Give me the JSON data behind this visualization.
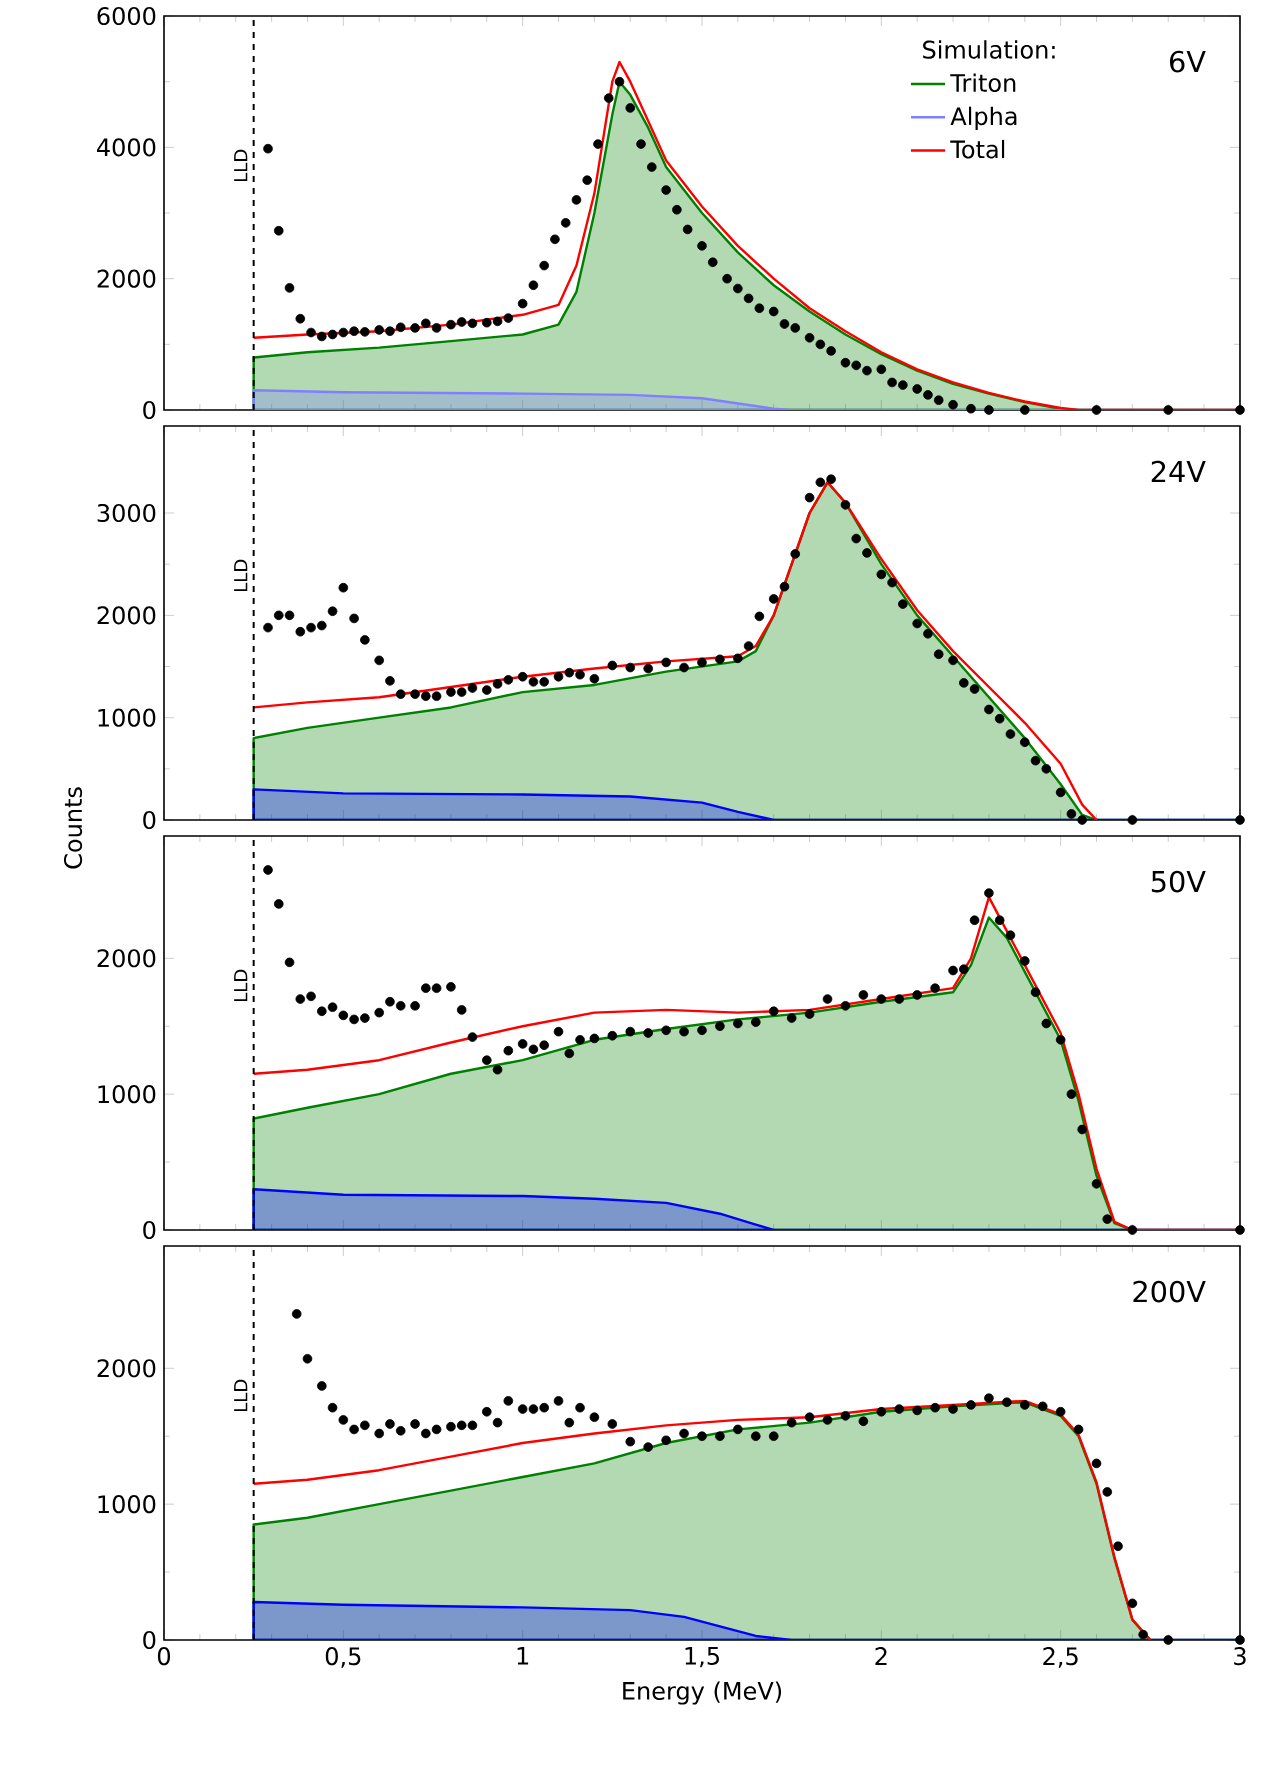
{
  "chart_data": [
    {
      "type": "line",
      "xlim": [
        0,
        3
      ],
      "ylim": [
        0,
        6000
      ],
      "yticks": [
        0,
        2000,
        4000,
        6000
      ],
      "xticks": [
        {
          "value": 0,
          "label": null
        },
        {
          "value": 0.5,
          "label": null
        },
        {
          "value": 1,
          "label": null
        },
        {
          "value": 1.5,
          "label": null
        },
        {
          "value": 2,
          "label": null
        },
        {
          "value": 2.5,
          "label": null
        },
        {
          "value": 3,
          "label": null
        }
      ],
      "tick_labels": "y",
      "legend": "top right",
      "legend_title": "Simulation:",
      "annotations": [
        "6V"
      ],
      "ref_lines": [
        {
          "axis": "x",
          "value": 0.25,
          "label": "LLD",
          "line_style": "dashed",
          "color": "#000000"
        }
      ],
      "series": [
        {
          "name": "Triton",
          "type": "area",
          "color": "#008000",
          "x": [
            0.25,
            0.4,
            0.6,
            0.8,
            1.0,
            1.1,
            1.15,
            1.2,
            1.25,
            1.27,
            1.3,
            1.35,
            1.4,
            1.5,
            1.6,
            1.7,
            1.8,
            1.9,
            2.0,
            2.1,
            2.2,
            2.3,
            2.4,
            2.5,
            2.55,
            3.0
          ],
          "values": [
            800,
            880,
            950,
            1050,
            1150,
            1300,
            1800,
            3000,
            4500,
            5000,
            4800,
            4300,
            3700,
            3000,
            2400,
            1900,
            1500,
            1150,
            850,
            600,
            400,
            250,
            120,
            20,
            0,
            0
          ]
        },
        {
          "name": "Alpha",
          "type": "area",
          "color": "#8080ff",
          "x": [
            0.25,
            0.5,
            1.0,
            1.3,
            1.5,
            1.6,
            1.7,
            1.75,
            3.0
          ],
          "values": [
            300,
            270,
            250,
            230,
            180,
            100,
            20,
            0,
            0
          ]
        },
        {
          "name": "Total",
          "color": "#ff0000",
          "x": [
            0.25,
            0.4,
            0.6,
            0.8,
            1.0,
            1.1,
            1.15,
            1.2,
            1.25,
            1.27,
            1.3,
            1.35,
            1.4,
            1.5,
            1.6,
            1.7,
            1.8,
            1.9,
            2.0,
            2.1,
            2.2,
            2.3,
            2.4,
            2.5,
            2.55,
            3.0
          ],
          "values": [
            1100,
            1150,
            1200,
            1300,
            1450,
            1600,
            2200,
            3300,
            5000,
            5300,
            5000,
            4400,
            3800,
            3100,
            2500,
            2000,
            1550,
            1200,
            880,
            620,
            420,
            260,
            130,
            30,
            0,
            0
          ]
        },
        {
          "type": "scatter",
          "marker": "circle",
          "color": "#000000",
          "x": [
            0.29,
            0.32,
            0.35,
            0.38,
            0.41,
            0.44,
            0.47,
            0.5,
            0.53,
            0.56,
            0.6,
            0.63,
            0.66,
            0.7,
            0.73,
            0.76,
            0.8,
            0.83,
            0.86,
            0.9,
            0.93,
            0.96,
            1.0,
            1.03,
            1.06,
            1.09,
            1.12,
            1.15,
            1.18,
            1.21,
            1.24,
            1.27,
            1.3,
            1.33,
            1.36,
            1.4,
            1.43,
            1.46,
            1.5,
            1.53,
            1.57,
            1.6,
            1.63,
            1.66,
            1.7,
            1.73,
            1.76,
            1.8,
            1.83,
            1.86,
            1.9,
            1.93,
            1.96,
            2.0,
            2.03,
            2.06,
            2.1,
            2.13,
            2.16,
            2.2,
            2.25,
            2.3,
            2.4,
            2.6,
            2.8,
            3.0
          ],
          "values": [
            3980,
            2730,
            1860,
            1390,
            1180,
            1120,
            1150,
            1180,
            1200,
            1190,
            1220,
            1200,
            1260,
            1250,
            1320,
            1250,
            1300,
            1340,
            1320,
            1330,
            1350,
            1400,
            1620,
            1900,
            2200,
            2600,
            2850,
            3200,
            3500,
            4050,
            4750,
            5000,
            4600,
            4050,
            3700,
            3350,
            3050,
            2750,
            2500,
            2250,
            2000,
            1850,
            1700,
            1550,
            1500,
            1310,
            1250,
            1100,
            1000,
            900,
            720,
            680,
            600,
            620,
            420,
            380,
            320,
            230,
            150,
            80,
            20,
            0,
            0,
            0,
            0,
            0
          ]
        }
      ]
    },
    {
      "type": "line",
      "xlim": [
        0,
        3
      ],
      "ylim": [
        0,
        3850
      ],
      "yticks": [
        0,
        1000,
        2000,
        3000
      ],
      "xticks": [
        {
          "value": 0,
          "label": null
        },
        {
          "value": 0.5,
          "label": null
        },
        {
          "value": 1,
          "label": null
        },
        {
          "value": 1.5,
          "label": null
        },
        {
          "value": 2,
          "label": null
        },
        {
          "value": 2.5,
          "label": null
        },
        {
          "value": 3,
          "label": null
        }
      ],
      "tick_labels": "y",
      "ylabel": "Counts",
      "annotations": [
        "24V"
      ],
      "ref_lines": [
        {
          "axis": "x",
          "value": 0.25,
          "label": "LLD",
          "line_style": "dashed",
          "color": "#000000"
        }
      ],
      "series": [
        {
          "type": "area",
          "color": "#008000",
          "x": [
            0.25,
            0.4,
            0.6,
            0.8,
            1.0,
            1.2,
            1.4,
            1.6,
            1.65,
            1.7,
            1.75,
            1.8,
            1.85,
            1.9,
            2.0,
            2.1,
            2.2,
            2.3,
            2.4,
            2.5,
            2.56,
            2.6,
            3.0
          ],
          "values": [
            800,
            900,
            1000,
            1100,
            1250,
            1320,
            1450,
            1550,
            1650,
            2000,
            2500,
            3000,
            3300,
            3100,
            2500,
            2000,
            1600,
            1200,
            800,
            350,
            50,
            0,
            0
          ]
        },
        {
          "type": "area",
          "color": "#0000ff",
          "x": [
            0.25,
            0.5,
            1.0,
            1.3,
            1.5,
            1.6,
            1.7,
            3.0
          ],
          "values": [
            300,
            260,
            250,
            230,
            170,
            80,
            0,
            0
          ]
        },
        {
          "color": "#ff0000",
          "x": [
            0.25,
            0.4,
            0.6,
            0.8,
            1.0,
            1.2,
            1.4,
            1.6,
            1.65,
            1.7,
            1.75,
            1.8,
            1.85,
            1.9,
            2.0,
            2.1,
            2.2,
            2.3,
            2.4,
            2.5,
            2.56,
            2.6
          ],
          "values": [
            1100,
            1150,
            1200,
            1300,
            1400,
            1480,
            1550,
            1600,
            1700,
            2000,
            2500,
            3000,
            3300,
            3100,
            2550,
            2050,
            1650,
            1300,
            950,
            550,
            150,
            0
          ]
        },
        {
          "type": "scatter",
          "marker": "circle",
          "color": "#000000",
          "x": [
            0.29,
            0.32,
            0.35,
            0.38,
            0.41,
            0.44,
            0.47,
            0.5,
            0.53,
            0.56,
            0.6,
            0.63,
            0.66,
            0.7,
            0.73,
            0.76,
            0.8,
            0.83,
            0.86,
            0.9,
            0.93,
            0.96,
            1.0,
            1.03,
            1.06,
            1.1,
            1.13,
            1.16,
            1.2,
            1.25,
            1.3,
            1.35,
            1.4,
            1.45,
            1.5,
            1.55,
            1.6,
            1.63,
            1.66,
            1.7,
            1.73,
            1.76,
            1.8,
            1.83,
            1.86,
            1.9,
            1.93,
            1.96,
            2.0,
            2.03,
            2.06,
            2.1,
            2.13,
            2.16,
            2.2,
            2.23,
            2.26,
            2.3,
            2.33,
            2.36,
            2.4,
            2.43,
            2.46,
            2.5,
            2.53,
            2.56,
            2.7,
            3.0
          ],
          "values": [
            1880,
            2000,
            2000,
            1840,
            1880,
            1900,
            2040,
            2270,
            1970,
            1760,
            1560,
            1360,
            1230,
            1230,
            1210,
            1210,
            1250,
            1250,
            1290,
            1270,
            1330,
            1370,
            1400,
            1350,
            1350,
            1400,
            1440,
            1420,
            1380,
            1510,
            1490,
            1480,
            1540,
            1490,
            1540,
            1570,
            1580,
            1700,
            1990,
            2160,
            2280,
            2600,
            3150,
            3300,
            3330,
            3080,
            2750,
            2610,
            2400,
            2320,
            2110,
            1920,
            1820,
            1620,
            1560,
            1340,
            1280,
            1080,
            990,
            840,
            760,
            580,
            500,
            270,
            60,
            0,
            0,
            0
          ]
        }
      ]
    },
    {
      "type": "line",
      "xlim": [
        0,
        3
      ],
      "ylim": [
        0,
        2900
      ],
      "yticks": [
        0,
        1000,
        2000
      ],
      "xticks": [
        {
          "value": 0,
          "label": null
        },
        {
          "value": 0.5,
          "label": null
        },
        {
          "value": 1,
          "label": null
        },
        {
          "value": 1.5,
          "label": null
        },
        {
          "value": 2,
          "label": null
        },
        {
          "value": 2.5,
          "label": null
        },
        {
          "value": 3,
          "label": null
        }
      ],
      "tick_labels": "y",
      "annotations": [
        "50V"
      ],
      "ref_lines": [
        {
          "axis": "x",
          "value": 0.25,
          "label": "LLD",
          "line_style": "dashed",
          "color": "#000000"
        }
      ],
      "series": [
        {
          "type": "area",
          "color": "#008000",
          "x": [
            0.25,
            0.4,
            0.6,
            0.8,
            1.0,
            1.2,
            1.4,
            1.6,
            1.8,
            2.0,
            2.2,
            2.25,
            2.3,
            2.35,
            2.4,
            2.5,
            2.55,
            2.6,
            2.65,
            2.7,
            3.0
          ],
          "values": [
            820,
            900,
            1000,
            1150,
            1250,
            1400,
            1480,
            1550,
            1600,
            1680,
            1750,
            1950,
            2300,
            2150,
            1900,
            1400,
            950,
            400,
            50,
            0,
            0
          ]
        },
        {
          "type": "area",
          "color": "#0000ff",
          "x": [
            0.25,
            0.5,
            1.0,
            1.2,
            1.4,
            1.55,
            1.65,
            1.7,
            3.0
          ],
          "values": [
            300,
            260,
            250,
            230,
            200,
            120,
            40,
            0,
            0
          ]
        },
        {
          "color": "#ff0000",
          "x": [
            0.25,
            0.4,
            0.6,
            0.8,
            1.0,
            1.2,
            1.4,
            1.6,
            1.8,
            2.0,
            2.2,
            2.25,
            2.3,
            2.35,
            2.4,
            2.5,
            2.55,
            2.6,
            2.65,
            2.7,
            3.0
          ],
          "values": [
            1150,
            1180,
            1250,
            1380,
            1500,
            1600,
            1620,
            1600,
            1620,
            1700,
            1780,
            2000,
            2450,
            2200,
            1950,
            1450,
            1000,
            450,
            60,
            0,
            0
          ]
        },
        {
          "type": "scatter",
          "marker": "circle",
          "color": "#000000",
          "x": [
            0.29,
            0.32,
            0.35,
            0.38,
            0.41,
            0.44,
            0.47,
            0.5,
            0.53,
            0.56,
            0.6,
            0.63,
            0.66,
            0.7,
            0.73,
            0.76,
            0.8,
            0.83,
            0.86,
            0.9,
            0.93,
            0.96,
            1.0,
            1.03,
            1.06,
            1.1,
            1.13,
            1.16,
            1.2,
            1.25,
            1.3,
            1.35,
            1.4,
            1.45,
            1.5,
            1.55,
            1.6,
            1.65,
            1.7,
            1.75,
            1.8,
            1.85,
            1.9,
            1.95,
            2.0,
            2.05,
            2.1,
            2.15,
            2.2,
            2.23,
            2.26,
            2.3,
            2.33,
            2.36,
            2.4,
            2.43,
            2.46,
            2.5,
            2.53,
            2.56,
            2.6,
            2.63,
            2.7,
            3.0
          ],
          "values": [
            2650,
            2400,
            1970,
            1700,
            1720,
            1610,
            1640,
            1580,
            1550,
            1560,
            1600,
            1680,
            1650,
            1650,
            1780,
            1780,
            1790,
            1620,
            1420,
            1250,
            1180,
            1320,
            1370,
            1330,
            1360,
            1460,
            1300,
            1400,
            1410,
            1430,
            1460,
            1450,
            1470,
            1460,
            1470,
            1500,
            1520,
            1530,
            1610,
            1560,
            1590,
            1700,
            1650,
            1730,
            1700,
            1700,
            1730,
            1780,
            1910,
            1920,
            2280,
            2480,
            2280,
            2170,
            1980,
            1750,
            1520,
            1400,
            1000,
            740,
            340,
            80,
            0,
            0
          ]
        }
      ]
    },
    {
      "type": "line",
      "xlim": [
        0,
        3
      ],
      "ylim": [
        0,
        2900
      ],
      "yticks": [
        0,
        1000,
        2000
      ],
      "xticks": [
        0,
        {
          "value": 0.5,
          "label": "0,5"
        },
        1,
        {
          "value": 1.5,
          "label": "1,5"
        },
        2,
        {
          "value": 2.5,
          "label": "2,5"
        },
        3
      ],
      "xlabel": "Energy (MeV)",
      "annotations": [
        "200V"
      ],
      "ref_lines": [
        {
          "axis": "x",
          "value": 0.25,
          "label": "LLD",
          "line_style": "dashed",
          "color": "#000000"
        }
      ],
      "series": [
        {
          "type": "area",
          "color": "#008000",
          "x": [
            0.25,
            0.4,
            0.6,
            0.8,
            1.0,
            1.2,
            1.4,
            1.6,
            1.8,
            2.0,
            2.2,
            2.4,
            2.5,
            2.55,
            2.6,
            2.65,
            2.7,
            2.75,
            3.0
          ],
          "values": [
            850,
            900,
            1000,
            1100,
            1200,
            1300,
            1450,
            1550,
            1600,
            1680,
            1720,
            1750,
            1650,
            1500,
            1150,
            600,
            150,
            0,
            0
          ]
        },
        {
          "type": "area",
          "color": "#0000ff",
          "x": [
            0.25,
            0.5,
            1.0,
            1.3,
            1.45,
            1.55,
            1.65,
            1.75,
            3.0
          ],
          "values": [
            280,
            260,
            240,
            220,
            170,
            100,
            30,
            0,
            0
          ]
        },
        {
          "color": "#ff0000",
          "x": [
            0.25,
            0.4,
            0.6,
            0.8,
            1.0,
            1.2,
            1.4,
            1.6,
            1.8,
            2.0,
            2.2,
            2.4,
            2.5,
            2.55,
            2.6,
            2.65,
            2.7,
            2.75
          ],
          "values": [
            1150,
            1180,
            1250,
            1350,
            1450,
            1520,
            1580,
            1620,
            1640,
            1700,
            1730,
            1760,
            1660,
            1510,
            1160,
            610,
            150,
            0
          ]
        },
        {
          "type": "scatter",
          "marker": "circle",
          "color": "#000000",
          "x": [
            0.37,
            0.4,
            0.44,
            0.47,
            0.5,
            0.53,
            0.56,
            0.6,
            0.63,
            0.66,
            0.7,
            0.73,
            0.76,
            0.8,
            0.83,
            0.86,
            0.9,
            0.93,
            0.96,
            1.0,
            1.03,
            1.06,
            1.1,
            1.13,
            1.16,
            1.2,
            1.25,
            1.3,
            1.35,
            1.4,
            1.45,
            1.5,
            1.55,
            1.6,
            1.65,
            1.7,
            1.75,
            1.8,
            1.85,
            1.9,
            1.95,
            2.0,
            2.05,
            2.1,
            2.15,
            2.2,
            2.25,
            2.3,
            2.35,
            2.4,
            2.45,
            2.5,
            2.55,
            2.6,
            2.63,
            2.66,
            2.7,
            2.73,
            2.8,
            3.0
          ],
          "values": [
            2400,
            2070,
            1870,
            1710,
            1620,
            1550,
            1580,
            1520,
            1590,
            1540,
            1590,
            1520,
            1550,
            1570,
            1580,
            1580,
            1680,
            1600,
            1760,
            1700,
            1700,
            1710,
            1760,
            1600,
            1710,
            1640,
            1590,
            1460,
            1420,
            1470,
            1520,
            1500,
            1500,
            1550,
            1500,
            1500,
            1600,
            1640,
            1620,
            1650,
            1610,
            1680,
            1700,
            1690,
            1710,
            1700,
            1730,
            1780,
            1750,
            1730,
            1720,
            1680,
            1550,
            1300,
            1090,
            690,
            270,
            40,
            0,
            0
          ]
        }
      ]
    }
  ]
}
